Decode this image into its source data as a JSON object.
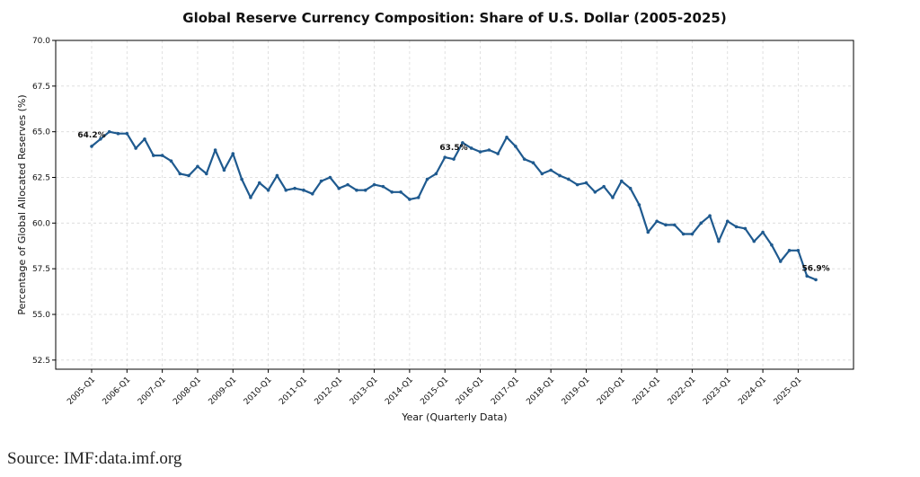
{
  "chart_data": {
    "type": "line",
    "title": "Global Reserve Currency Composition: Share of U.S. Dollar (2005-2025)",
    "xlabel": "Year (Quarterly Data)",
    "ylabel": "Percentage of Global Allocated Reserves (%)",
    "ylim": [
      52.0,
      70.0
    ],
    "yticks": [
      "52.5",
      "55.0",
      "57.5",
      "60.0",
      "62.5",
      "65.0",
      "67.5",
      "70.0"
    ],
    "xticks": [
      "2005-Q1",
      "2006-Q1",
      "2007-Q1",
      "2008-Q1",
      "2009-Q1",
      "2010-Q1",
      "2011-Q1",
      "2012-Q1",
      "2013-Q1",
      "2014-Q1",
      "2015-Q1",
      "2016-Q1",
      "2017-Q1",
      "2018-Q1",
      "2019-Q1",
      "2020-Q1",
      "2021-Q1",
      "2022-Q1",
      "2023-Q1",
      "2024-Q1",
      "2025-Q1"
    ],
    "grid": true,
    "series_color": "#1f5a8f",
    "series": [
      {
        "values": [
          64.2,
          64.6,
          65.0,
          64.9,
          64.9,
          64.1,
          64.6,
          63.7,
          63.7,
          63.4,
          62.7,
          62.6,
          63.1,
          62.7,
          64.0,
          62.9,
          63.8,
          62.4,
          61.4,
          62.2,
          61.8,
          62.6,
          61.8,
          61.9,
          61.8,
          61.6,
          62.3,
          62.5,
          61.9,
          62.1,
          61.8,
          61.8,
          62.1,
          62.0,
          61.7,
          61.7,
          61.3,
          61.4,
          62.4,
          62.7,
          63.6,
          63.5,
          64.4,
          64.1,
          63.9,
          64.0,
          63.8,
          64.7,
          64.2,
          63.5,
          63.3,
          62.7,
          62.9,
          62.6,
          62.4,
          62.1,
          62.2,
          61.7,
          62.0,
          61.4,
          62.3,
          61.9,
          61.0,
          59.5,
          60.1,
          59.9,
          59.9,
          59.4,
          59.4,
          60.0,
          60.4,
          59.0,
          60.1,
          59.8,
          59.7,
          59.0,
          59.5,
          58.8,
          57.9,
          58.5,
          58.5,
          57.1,
          56.9
        ]
      }
    ],
    "annotations": [
      {
        "text": "64.2%",
        "index": 0
      },
      {
        "text": "63.5%",
        "index": 41
      },
      {
        "text": "56.9%",
        "index": 82
      }
    ]
  },
  "source_text": "Source: IMF:data.imf.org"
}
